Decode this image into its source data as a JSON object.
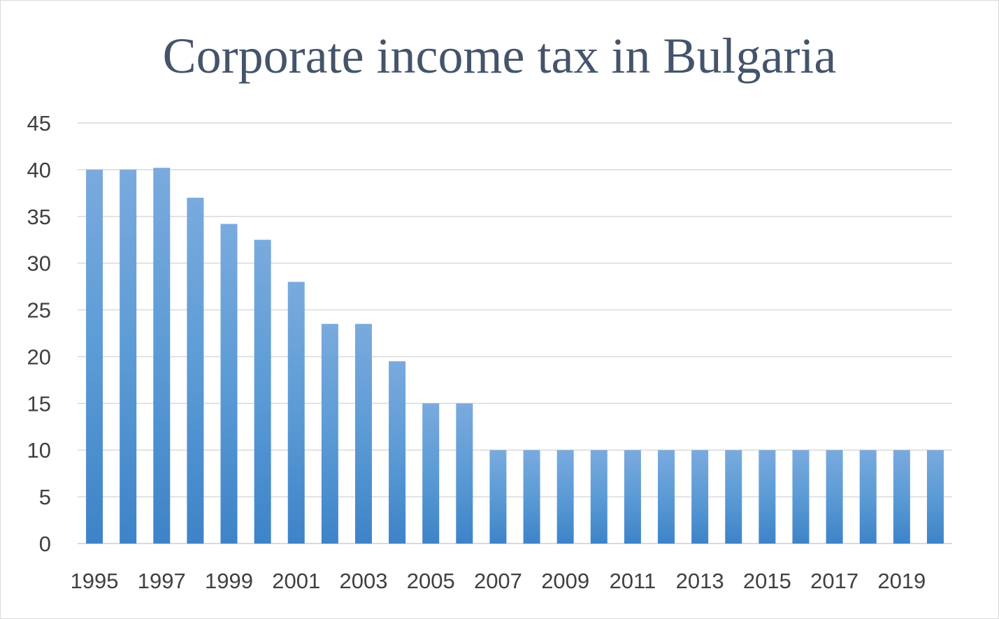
{
  "chart_data": {
    "type": "bar",
    "title": "Corporate income tax in Bulgaria",
    "xlabel": "",
    "ylabel": "",
    "categories": [
      "1995",
      "1996",
      "1997",
      "1998",
      "1999",
      "2000",
      "2001",
      "2002",
      "2003",
      "2004",
      "2005",
      "2006",
      "2007",
      "2008",
      "2009",
      "2010",
      "2011",
      "2012",
      "2013",
      "2014",
      "2015",
      "2016",
      "2017",
      "2018",
      "2019",
      "2020"
    ],
    "x_tick_labels": [
      "1995",
      "1997",
      "1999",
      "2001",
      "2003",
      "2005",
      "2007",
      "2009",
      "2011",
      "2013",
      "2015",
      "2017",
      "2019"
    ],
    "values": [
      40,
      40,
      40.2,
      37,
      34.2,
      32.5,
      28,
      23.5,
      23.5,
      19.5,
      15,
      15,
      10,
      10,
      10,
      10,
      10,
      10,
      10,
      10,
      10,
      10,
      10,
      10,
      10,
      10
    ],
    "ylim": [
      0,
      45
    ],
    "y_ticks": [
      "0",
      "5",
      "10",
      "15",
      "20",
      "25",
      "30",
      "35",
      "40",
      "45"
    ],
    "grid": true,
    "legend": "none",
    "colors": {
      "bar_top": "#7aaade",
      "bar_mid": "#5b9bd5",
      "bar_bottom": "#3e83c8",
      "grid": "#d9d9d9",
      "title": "#44546a"
    }
  }
}
